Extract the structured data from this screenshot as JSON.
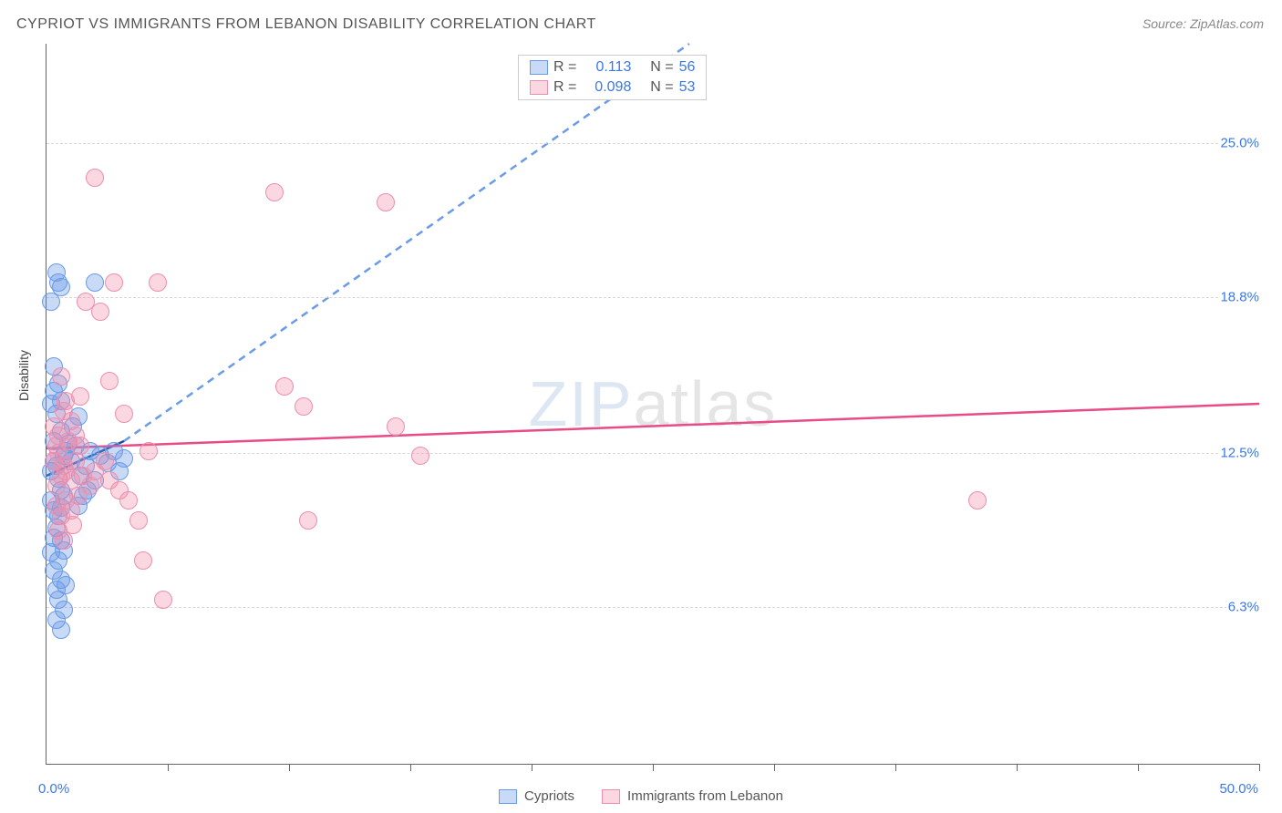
{
  "title": "CYPRIOT VS IMMIGRANTS FROM LEBANON DISABILITY CORRELATION CHART",
  "source": "Source: ZipAtlas.com",
  "watermark_bold": "ZIP",
  "watermark_thin": "atlas",
  "ylabel": "Disability",
  "chart": {
    "type": "scatter",
    "xlim": [
      0,
      50
    ],
    "ylim": [
      0,
      29
    ],
    "background_color": "#ffffff",
    "grid_color": "#d8d8d8",
    "axis_color": "#666666",
    "label_color": "#3b78e7",
    "yticks": [
      {
        "v": 6.3,
        "label": "6.3%"
      },
      {
        "v": 12.5,
        "label": "12.5%"
      },
      {
        "v": 18.8,
        "label": "18.8%"
      },
      {
        "v": 25.0,
        "label": "25.0%"
      }
    ],
    "xticks_minor": [
      5,
      10,
      15,
      20,
      25,
      30,
      35,
      40,
      45,
      50
    ],
    "xlabels": [
      {
        "v": 0,
        "label": "0.0%"
      },
      {
        "v": 50,
        "label": "50.0%"
      }
    ],
    "marker_radius": 10,
    "marker_border": 1.5,
    "series": [
      {
        "name": "Cypriots",
        "fill": "rgba(100,150,230,0.35)",
        "stroke": "#6a9be8",
        "R": "0.113",
        "N": "56",
        "trend": {
          "color": "#1f4e9e",
          "dash_color": "#6a9be8",
          "x1": 0,
          "y1": 11.6,
          "x2": 3.2,
          "y2": 13.0,
          "dash_x2": 26.5,
          "dash_y2": 29.0
        },
        "points": [
          [
            0.2,
            11.8
          ],
          [
            0.3,
            12.2
          ],
          [
            0.4,
            12.0
          ],
          [
            0.5,
            11.5
          ],
          [
            0.6,
            11.0
          ],
          [
            0.3,
            13.0
          ],
          [
            0.7,
            12.4
          ],
          [
            0.8,
            12.6
          ],
          [
            0.9,
            12.9
          ],
          [
            0.4,
            14.1
          ],
          [
            0.2,
            14.5
          ],
          [
            0.3,
            15.0
          ],
          [
            0.6,
            14.6
          ],
          [
            0.5,
            15.3
          ],
          [
            0.2,
            10.6
          ],
          [
            0.3,
            10.2
          ],
          [
            0.5,
            10.0
          ],
          [
            0.6,
            10.3
          ],
          [
            0.7,
            10.8
          ],
          [
            0.4,
            9.5
          ],
          [
            0.3,
            9.1
          ],
          [
            0.6,
            9.0
          ],
          [
            0.2,
            8.5
          ],
          [
            0.5,
            8.2
          ],
          [
            0.7,
            8.6
          ],
          [
            0.3,
            7.8
          ],
          [
            0.6,
            7.4
          ],
          [
            0.4,
            7.0
          ],
          [
            0.8,
            7.2
          ],
          [
            0.5,
            6.6
          ],
          [
            0.7,
            6.2
          ],
          [
            0.4,
            5.8
          ],
          [
            0.6,
            5.4
          ],
          [
            0.3,
            16.0
          ],
          [
            0.2,
            18.6
          ],
          [
            0.5,
            19.4
          ],
          [
            0.4,
            19.8
          ],
          [
            0.6,
            19.2
          ],
          [
            1.0,
            12.2
          ],
          [
            1.2,
            12.8
          ],
          [
            1.4,
            11.6
          ],
          [
            1.6,
            12.0
          ],
          [
            1.8,
            12.6
          ],
          [
            2.0,
            11.4
          ],
          [
            1.3,
            10.4
          ],
          [
            1.5,
            10.8
          ],
          [
            1.1,
            13.6
          ],
          [
            1.3,
            14.0
          ],
          [
            1.7,
            11.0
          ],
          [
            2.0,
            19.4
          ],
          [
            2.2,
            12.4
          ],
          [
            2.5,
            12.1
          ],
          [
            2.8,
            12.6
          ],
          [
            3.0,
            11.8
          ],
          [
            3.2,
            12.3
          ],
          [
            0.6,
            13.4
          ]
        ]
      },
      {
        "name": "Immigrants from Lebanon",
        "fill": "rgba(240,140,170,0.35)",
        "stroke": "#ec8fae",
        "R": "0.098",
        "N": "53",
        "trend": {
          "color": "#e84b86",
          "x1": 0,
          "y1": 12.7,
          "x2": 50,
          "y2": 14.5
        },
        "points": [
          [
            0.3,
            12.2
          ],
          [
            0.5,
            12.5
          ],
          [
            0.7,
            12.0
          ],
          [
            0.6,
            11.6
          ],
          [
            0.4,
            11.2
          ],
          [
            0.8,
            11.8
          ],
          [
            0.5,
            13.2
          ],
          [
            0.3,
            13.6
          ],
          [
            0.7,
            14.2
          ],
          [
            0.9,
            13.0
          ],
          [
            1.0,
            11.4
          ],
          [
            1.2,
            12.2
          ],
          [
            1.4,
            12.8
          ],
          [
            1.5,
            11.6
          ],
          [
            0.4,
            10.4
          ],
          [
            0.6,
            10.0
          ],
          [
            0.8,
            10.6
          ],
          [
            1.0,
            10.2
          ],
          [
            0.5,
            9.4
          ],
          [
            0.7,
            9.0
          ],
          [
            1.1,
            9.6
          ],
          [
            1.3,
            10.8
          ],
          [
            1.8,
            11.2
          ],
          [
            2.0,
            11.8
          ],
          [
            2.4,
            12.2
          ],
          [
            2.6,
            11.4
          ],
          [
            3.0,
            11.0
          ],
          [
            3.4,
            10.6
          ],
          [
            4.2,
            12.6
          ],
          [
            4.0,
            8.2
          ],
          [
            3.2,
            14.1
          ],
          [
            3.8,
            9.8
          ],
          [
            1.6,
            18.6
          ],
          [
            2.2,
            18.2
          ],
          [
            2.8,
            19.4
          ],
          [
            4.6,
            19.4
          ],
          [
            2.0,
            23.6
          ],
          [
            9.4,
            23.0
          ],
          [
            14.0,
            22.6
          ],
          [
            9.8,
            15.2
          ],
          [
            10.6,
            14.4
          ],
          [
            14.4,
            13.6
          ],
          [
            10.8,
            9.8
          ],
          [
            4.8,
            6.6
          ],
          [
            1.4,
            14.8
          ],
          [
            2.6,
            15.4
          ],
          [
            15.4,
            12.4
          ],
          [
            38.4,
            10.6
          ],
          [
            1.0,
            13.8
          ],
          [
            0.6,
            15.6
          ],
          [
            0.8,
            14.6
          ],
          [
            1.2,
            13.2
          ],
          [
            0.4,
            12.8
          ]
        ]
      }
    ]
  },
  "stat_box": {
    "rows": [
      {
        "swatch_fill": "rgba(100,150,230,0.35)",
        "swatch_stroke": "#6a9be8",
        "R": "0.113",
        "N": "56"
      },
      {
        "swatch_fill": "rgba(240,140,170,0.35)",
        "swatch_stroke": "#ec8fae",
        "R": "0.098",
        "N": "53"
      }
    ]
  },
  "bottom_legend": [
    {
      "swatch_fill": "rgba(100,150,230,0.35)",
      "swatch_stroke": "#6a9be8",
      "label": "Cypriots"
    },
    {
      "swatch_fill": "rgba(240,140,170,0.35)",
      "swatch_stroke": "#ec8fae",
      "label": "Immigrants from Lebanon"
    }
  ]
}
